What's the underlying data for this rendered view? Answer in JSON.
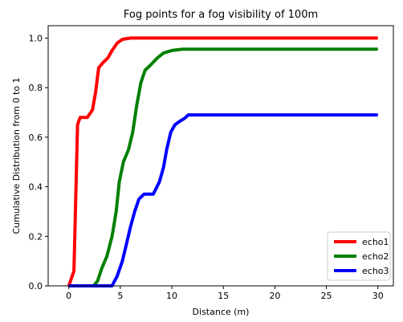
{
  "chart_data": {
    "type": "line",
    "title": "Fog points for a fog visibility of 100m",
    "xlabel": "Distance (m)",
    "ylabel": "Cumulative Distribution from 0 to 1",
    "xlim": [
      -2,
      31.5
    ],
    "ylim": [
      0,
      1.05
    ],
    "xticks": [
      0,
      5,
      10,
      15,
      20,
      25,
      30
    ],
    "yticks": [
      0.0,
      0.2,
      0.4,
      0.6,
      0.8,
      1.0
    ],
    "xtick_labels": [
      "0",
      "5",
      "10",
      "15",
      "20",
      "25",
      "30"
    ],
    "ytick_labels": [
      "0.0",
      "0.2",
      "0.4",
      "0.6",
      "0.8",
      "1.0"
    ],
    "grid": false,
    "legend_position": "lower-right",
    "series": [
      {
        "name": "echo1",
        "color": "#ff0000",
        "points": [
          [
            0,
            0
          ],
          [
            0.5,
            0.06
          ],
          [
            0.7,
            0.4
          ],
          [
            0.85,
            0.65
          ],
          [
            1.1,
            0.68
          ],
          [
            1.8,
            0.68
          ],
          [
            2.3,
            0.71
          ],
          [
            2.6,
            0.78
          ],
          [
            2.9,
            0.88
          ],
          [
            3.3,
            0.9
          ],
          [
            3.8,
            0.92
          ],
          [
            4.2,
            0.95
          ],
          [
            4.7,
            0.98
          ],
          [
            5.2,
            0.995
          ],
          [
            6,
            1.0
          ],
          [
            30,
            1.0
          ]
        ]
      },
      {
        "name": "echo2",
        "color": "#008000",
        "points": [
          [
            0,
            0
          ],
          [
            2.4,
            0
          ],
          [
            2.8,
            0.02
          ],
          [
            3.2,
            0.07
          ],
          [
            3.7,
            0.12
          ],
          [
            4.2,
            0.2
          ],
          [
            4.6,
            0.3
          ],
          [
            4.9,
            0.42
          ],
          [
            5.3,
            0.5
          ],
          [
            5.8,
            0.55
          ],
          [
            6.2,
            0.62
          ],
          [
            6.6,
            0.73
          ],
          [
            7,
            0.82
          ],
          [
            7.4,
            0.87
          ],
          [
            7.9,
            0.89
          ],
          [
            8.6,
            0.92
          ],
          [
            9.2,
            0.94
          ],
          [
            10,
            0.95
          ],
          [
            11,
            0.955
          ],
          [
            30,
            0.955
          ]
        ]
      },
      {
        "name": "echo3",
        "color": "#0000ff",
        "points": [
          [
            0,
            0
          ],
          [
            4.2,
            0
          ],
          [
            4.7,
            0.04
          ],
          [
            5.2,
            0.1
          ],
          [
            5.6,
            0.17
          ],
          [
            6,
            0.24
          ],
          [
            6.4,
            0.3
          ],
          [
            6.8,
            0.35
          ],
          [
            7.3,
            0.37
          ],
          [
            8.2,
            0.37
          ],
          [
            8.8,
            0.42
          ],
          [
            9.2,
            0.48
          ],
          [
            9.5,
            0.55
          ],
          [
            9.9,
            0.62
          ],
          [
            10.3,
            0.65
          ],
          [
            10.8,
            0.665
          ],
          [
            11.2,
            0.675
          ],
          [
            11.6,
            0.69
          ],
          [
            30,
            0.69
          ]
        ]
      }
    ]
  }
}
